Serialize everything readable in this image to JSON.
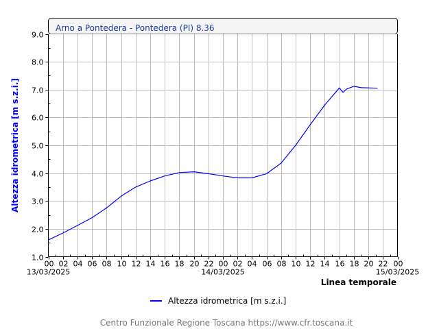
{
  "chart_data": {
    "type": "line",
    "title": "Arno a Pontedera - Pontedera (PI) 8.36",
    "ylabel": "Altezza idrometrica [m s.z.i.]",
    "xlabel": "Linea temporale",
    "ylim": [
      1.0,
      9.0
    ],
    "yticks": [
      "1.0",
      "2.0",
      "3.0",
      "4.0",
      "5.0",
      "6.0",
      "7.0",
      "8.0",
      "9.0"
    ],
    "xlim": [
      "2025-03-13 00:00",
      "2025-03-15 00:00"
    ],
    "xtick_labels": [
      "00",
      "02",
      "04",
      "06",
      "08",
      "10",
      "12",
      "14",
      "16",
      "18",
      "20",
      "22",
      "00",
      "02",
      "04",
      "06",
      "08",
      "10",
      "12",
      "14",
      "16",
      "18",
      "20",
      "22",
      "00"
    ],
    "date_labels": [
      "13/03/2025",
      "14/03/2025",
      "15/03/2025"
    ],
    "grid": true,
    "legend_position": "bottom",
    "series": [
      {
        "name": "Altezza idrometrica [m s.z.i.]",
        "color": "#0000ff",
        "x": [
          "2025-03-13 00:00",
          "2025-03-13 02:00",
          "2025-03-13 04:00",
          "2025-03-13 06:00",
          "2025-03-13 08:00",
          "2025-03-13 10:00",
          "2025-03-13 12:00",
          "2025-03-13 14:00",
          "2025-03-13 16:00",
          "2025-03-13 18:00",
          "2025-03-13 20:00",
          "2025-03-13 22:00",
          "2025-03-14 00:00",
          "2025-03-14 02:00",
          "2025-03-14 04:00",
          "2025-03-14 06:00",
          "2025-03-14 08:00",
          "2025-03-14 10:00",
          "2025-03-14 12:00",
          "2025-03-14 14:00",
          "2025-03-14 16:00",
          "2025-03-14 16:30",
          "2025-03-14 17:00",
          "2025-03-14 18:00",
          "2025-03-14 19:00",
          "2025-03-14 21:15"
        ],
        "values": [
          1.6,
          1.85,
          2.12,
          2.4,
          2.75,
          3.17,
          3.5,
          3.72,
          3.9,
          4.02,
          4.05,
          3.98,
          3.9,
          3.83,
          3.83,
          3.98,
          4.36,
          5.0,
          5.74,
          6.45,
          7.06,
          6.9,
          7.02,
          7.12,
          7.07,
          7.05
        ]
      }
    ]
  },
  "footer": "Centro Funzionale Regione Toscana https://www.cfr.toscana.it"
}
